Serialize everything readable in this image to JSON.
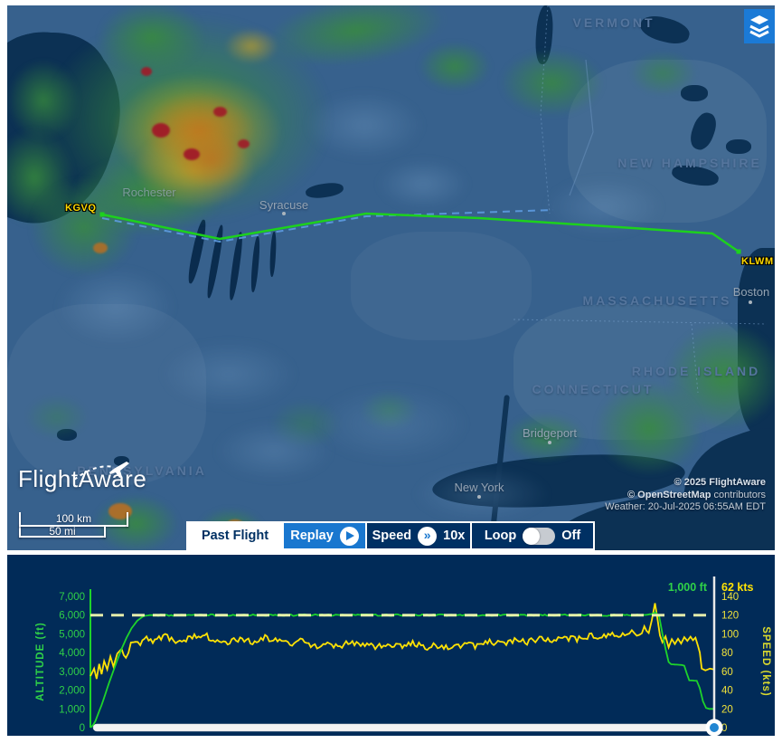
{
  "colors": {
    "map_land": "#37618d",
    "map_water": "#0c3154",
    "accent_blue": "#1977cf",
    "navy": "#003063",
    "chart_bg": "#012b58",
    "route_green": "#1dd11d",
    "planned_blue": "#5d9be0",
    "alt_green": "#2fd148",
    "speed_yellow": "#f0e23a"
  },
  "map": {
    "states": [
      {
        "label": "VERMONT"
      },
      {
        "label": "NEW HAMPSHIRE"
      },
      {
        "label": "MASSACHUSETTS"
      },
      {
        "label": "CONNECTICUT"
      },
      {
        "label": "RHODE ISLAND"
      },
      {
        "label": "PENNSYLVANIA"
      }
    ],
    "cities": [
      {
        "label": "Rochester"
      },
      {
        "label": "Syracuse"
      },
      {
        "label": "Boston"
      },
      {
        "label": "Bridgeport"
      },
      {
        "label": "New York"
      }
    ],
    "airports": {
      "origin": "KGVQ",
      "destination": "KLWM"
    },
    "route": {
      "flown": [
        [
          105,
          231
        ],
        [
          235,
          258
        ],
        [
          397,
          230
        ],
        [
          522,
          235
        ],
        [
          692,
          246
        ],
        [
          780,
          252
        ],
        [
          809,
          272
        ]
      ],
      "planned": [
        [
          105,
          235
        ],
        [
          235,
          261
        ],
        [
          397,
          233
        ],
        [
          604,
          226
        ]
      ]
    },
    "logo_text": "FlightAware",
    "scale": {
      "km": "100 km",
      "mi": "50 mi"
    },
    "attribution": {
      "line1": "© 2025 FlightAware",
      "line2_bold": "© OpenStreetMap",
      "line2_rest": " contributors",
      "line3": "Weather: 20-Jul-2025 06:55AM EDT"
    }
  },
  "controls": {
    "mode": "Past Flight",
    "replay": "Replay",
    "speed_label": "Speed",
    "speed_value": "10x",
    "loop_label": "Loop",
    "loop_state": "Off"
  },
  "chart_data": {
    "type": "line",
    "y_left": {
      "label": "ALTITUDE (ft)",
      "range": [
        0,
        7000
      ],
      "ticks": [
        "0",
        "1,000",
        "2,000",
        "3,000",
        "4,000",
        "5,000",
        "6,000",
        "7,000"
      ],
      "color": "#2fd148"
    },
    "y_right": {
      "label": "SPEED (kts)",
      "range": [
        0,
        140
      ],
      "ticks": [
        "0",
        "20",
        "40",
        "60",
        "80",
        "100",
        "120",
        "140"
      ],
      "color": "#f0e23a"
    },
    "current": {
      "altitude": "1,000 ft",
      "speed": "62 kts"
    },
    "target_altitude_ft": 6000,
    "legend_position": "top-right",
    "grid": false,
    "series": [
      {
        "name": "altitude",
        "unit": "ft",
        "color": "#1ed32b",
        "noise": {
          "amp": 45,
          "from": 0.1,
          "to": 0.9
        },
        "points": [
          [
            0,
            0
          ],
          [
            0.004,
            120
          ],
          [
            0.008,
            350
          ],
          [
            0.012,
            700
          ],
          [
            0.018,
            1200
          ],
          [
            0.024,
            1800
          ],
          [
            0.03,
            2400
          ],
          [
            0.036,
            2950
          ],
          [
            0.042,
            3500
          ],
          [
            0.05,
            4200
          ],
          [
            0.058,
            4800
          ],
          [
            0.066,
            5300
          ],
          [
            0.075,
            5700
          ],
          [
            0.085,
            5950
          ],
          [
            0.095,
            6000
          ],
          [
            0.15,
            6000
          ],
          [
            0.2,
            6000
          ],
          [
            0.25,
            6000
          ],
          [
            0.3,
            6000
          ],
          [
            0.35,
            6000
          ],
          [
            0.4,
            6000
          ],
          [
            0.45,
            6000
          ],
          [
            0.5,
            6000
          ],
          [
            0.55,
            6000
          ],
          [
            0.6,
            6000
          ],
          [
            0.65,
            6000
          ],
          [
            0.7,
            6000
          ],
          [
            0.75,
            6000
          ],
          [
            0.8,
            6000
          ],
          [
            0.85,
            6000
          ],
          [
            0.88,
            6000
          ],
          [
            0.9,
            6050
          ],
          [
            0.906,
            6150
          ],
          [
            0.912,
            5900
          ],
          [
            0.917,
            5000
          ],
          [
            0.922,
            4200
          ],
          [
            0.927,
            3500
          ],
          [
            0.931,
            3380
          ],
          [
            0.94,
            3360
          ],
          [
            0.948,
            3340
          ],
          [
            0.952,
            3300
          ],
          [
            0.956,
            2900
          ],
          [
            0.96,
            2520
          ],
          [
            0.972,
            2500
          ],
          [
            0.977,
            2100
          ],
          [
            0.982,
            1400
          ],
          [
            0.987,
            1050
          ],
          [
            0.992,
            1000
          ],
          [
            1,
            1000
          ]
        ]
      },
      {
        "name": "speed",
        "unit": "kts",
        "color": "#ffe205",
        "noise": {
          "amp": 3.2,
          "from": 0.05,
          "to": 0.97
        },
        "points": [
          [
            0,
            55
          ],
          [
            0.006,
            63
          ],
          [
            0.01,
            52
          ],
          [
            0.014,
            68
          ],
          [
            0.018,
            57
          ],
          [
            0.022,
            71
          ],
          [
            0.027,
            62
          ],
          [
            0.032,
            76
          ],
          [
            0.037,
            65
          ],
          [
            0.043,
            79
          ],
          [
            0.05,
            84
          ],
          [
            0.057,
            76
          ],
          [
            0.065,
            88
          ],
          [
            0.072,
            94
          ],
          [
            0.08,
            90
          ],
          [
            0.09,
            96
          ],
          [
            0.1,
            92
          ],
          [
            0.12,
            97
          ],
          [
            0.14,
            91
          ],
          [
            0.16,
            96
          ],
          [
            0.18,
            99
          ],
          [
            0.2,
            94
          ],
          [
            0.22,
            91
          ],
          [
            0.24,
            95
          ],
          [
            0.26,
            92
          ],
          [
            0.28,
            96
          ],
          [
            0.3,
            93
          ],
          [
            0.32,
            89
          ],
          [
            0.34,
            93
          ],
          [
            0.36,
            86
          ],
          [
            0.38,
            89
          ],
          [
            0.4,
            87
          ],
          [
            0.42,
            91
          ],
          [
            0.44,
            88
          ],
          [
            0.46,
            86
          ],
          [
            0.48,
            89
          ],
          [
            0.5,
            87
          ],
          [
            0.52,
            90
          ],
          [
            0.54,
            86
          ],
          [
            0.56,
            88
          ],
          [
            0.58,
            85
          ],
          [
            0.6,
            89
          ],
          [
            0.62,
            87
          ],
          [
            0.64,
            91
          ],
          [
            0.66,
            89
          ],
          [
            0.68,
            93
          ],
          [
            0.7,
            91
          ],
          [
            0.72,
            95
          ],
          [
            0.74,
            92
          ],
          [
            0.76,
            96
          ],
          [
            0.78,
            94
          ],
          [
            0.8,
            98
          ],
          [
            0.82,
            96
          ],
          [
            0.84,
            100
          ],
          [
            0.86,
            98
          ],
          [
            0.872,
            103
          ],
          [
            0.88,
            99
          ],
          [
            0.888,
            105
          ],
          [
            0.895,
            100
          ],
          [
            0.9,
            112
          ],
          [
            0.905,
            131
          ],
          [
            0.909,
            118
          ],
          [
            0.913,
            96
          ],
          [
            0.917,
            90
          ],
          [
            0.922,
            97
          ],
          [
            0.927,
            88
          ],
          [
            0.932,
            94
          ],
          [
            0.937,
            87
          ],
          [
            0.942,
            94
          ],
          [
            0.947,
            89
          ],
          [
            0.952,
            97
          ],
          [
            0.957,
            91
          ],
          [
            0.962,
            98
          ],
          [
            0.966,
            90
          ],
          [
            0.97,
            96
          ],
          [
            0.974,
            87
          ],
          [
            0.977,
            80
          ],
          [
            0.98,
            63
          ],
          [
            0.986,
            61
          ],
          [
            0.993,
            63
          ],
          [
            1,
            62
          ]
        ]
      }
    ]
  }
}
